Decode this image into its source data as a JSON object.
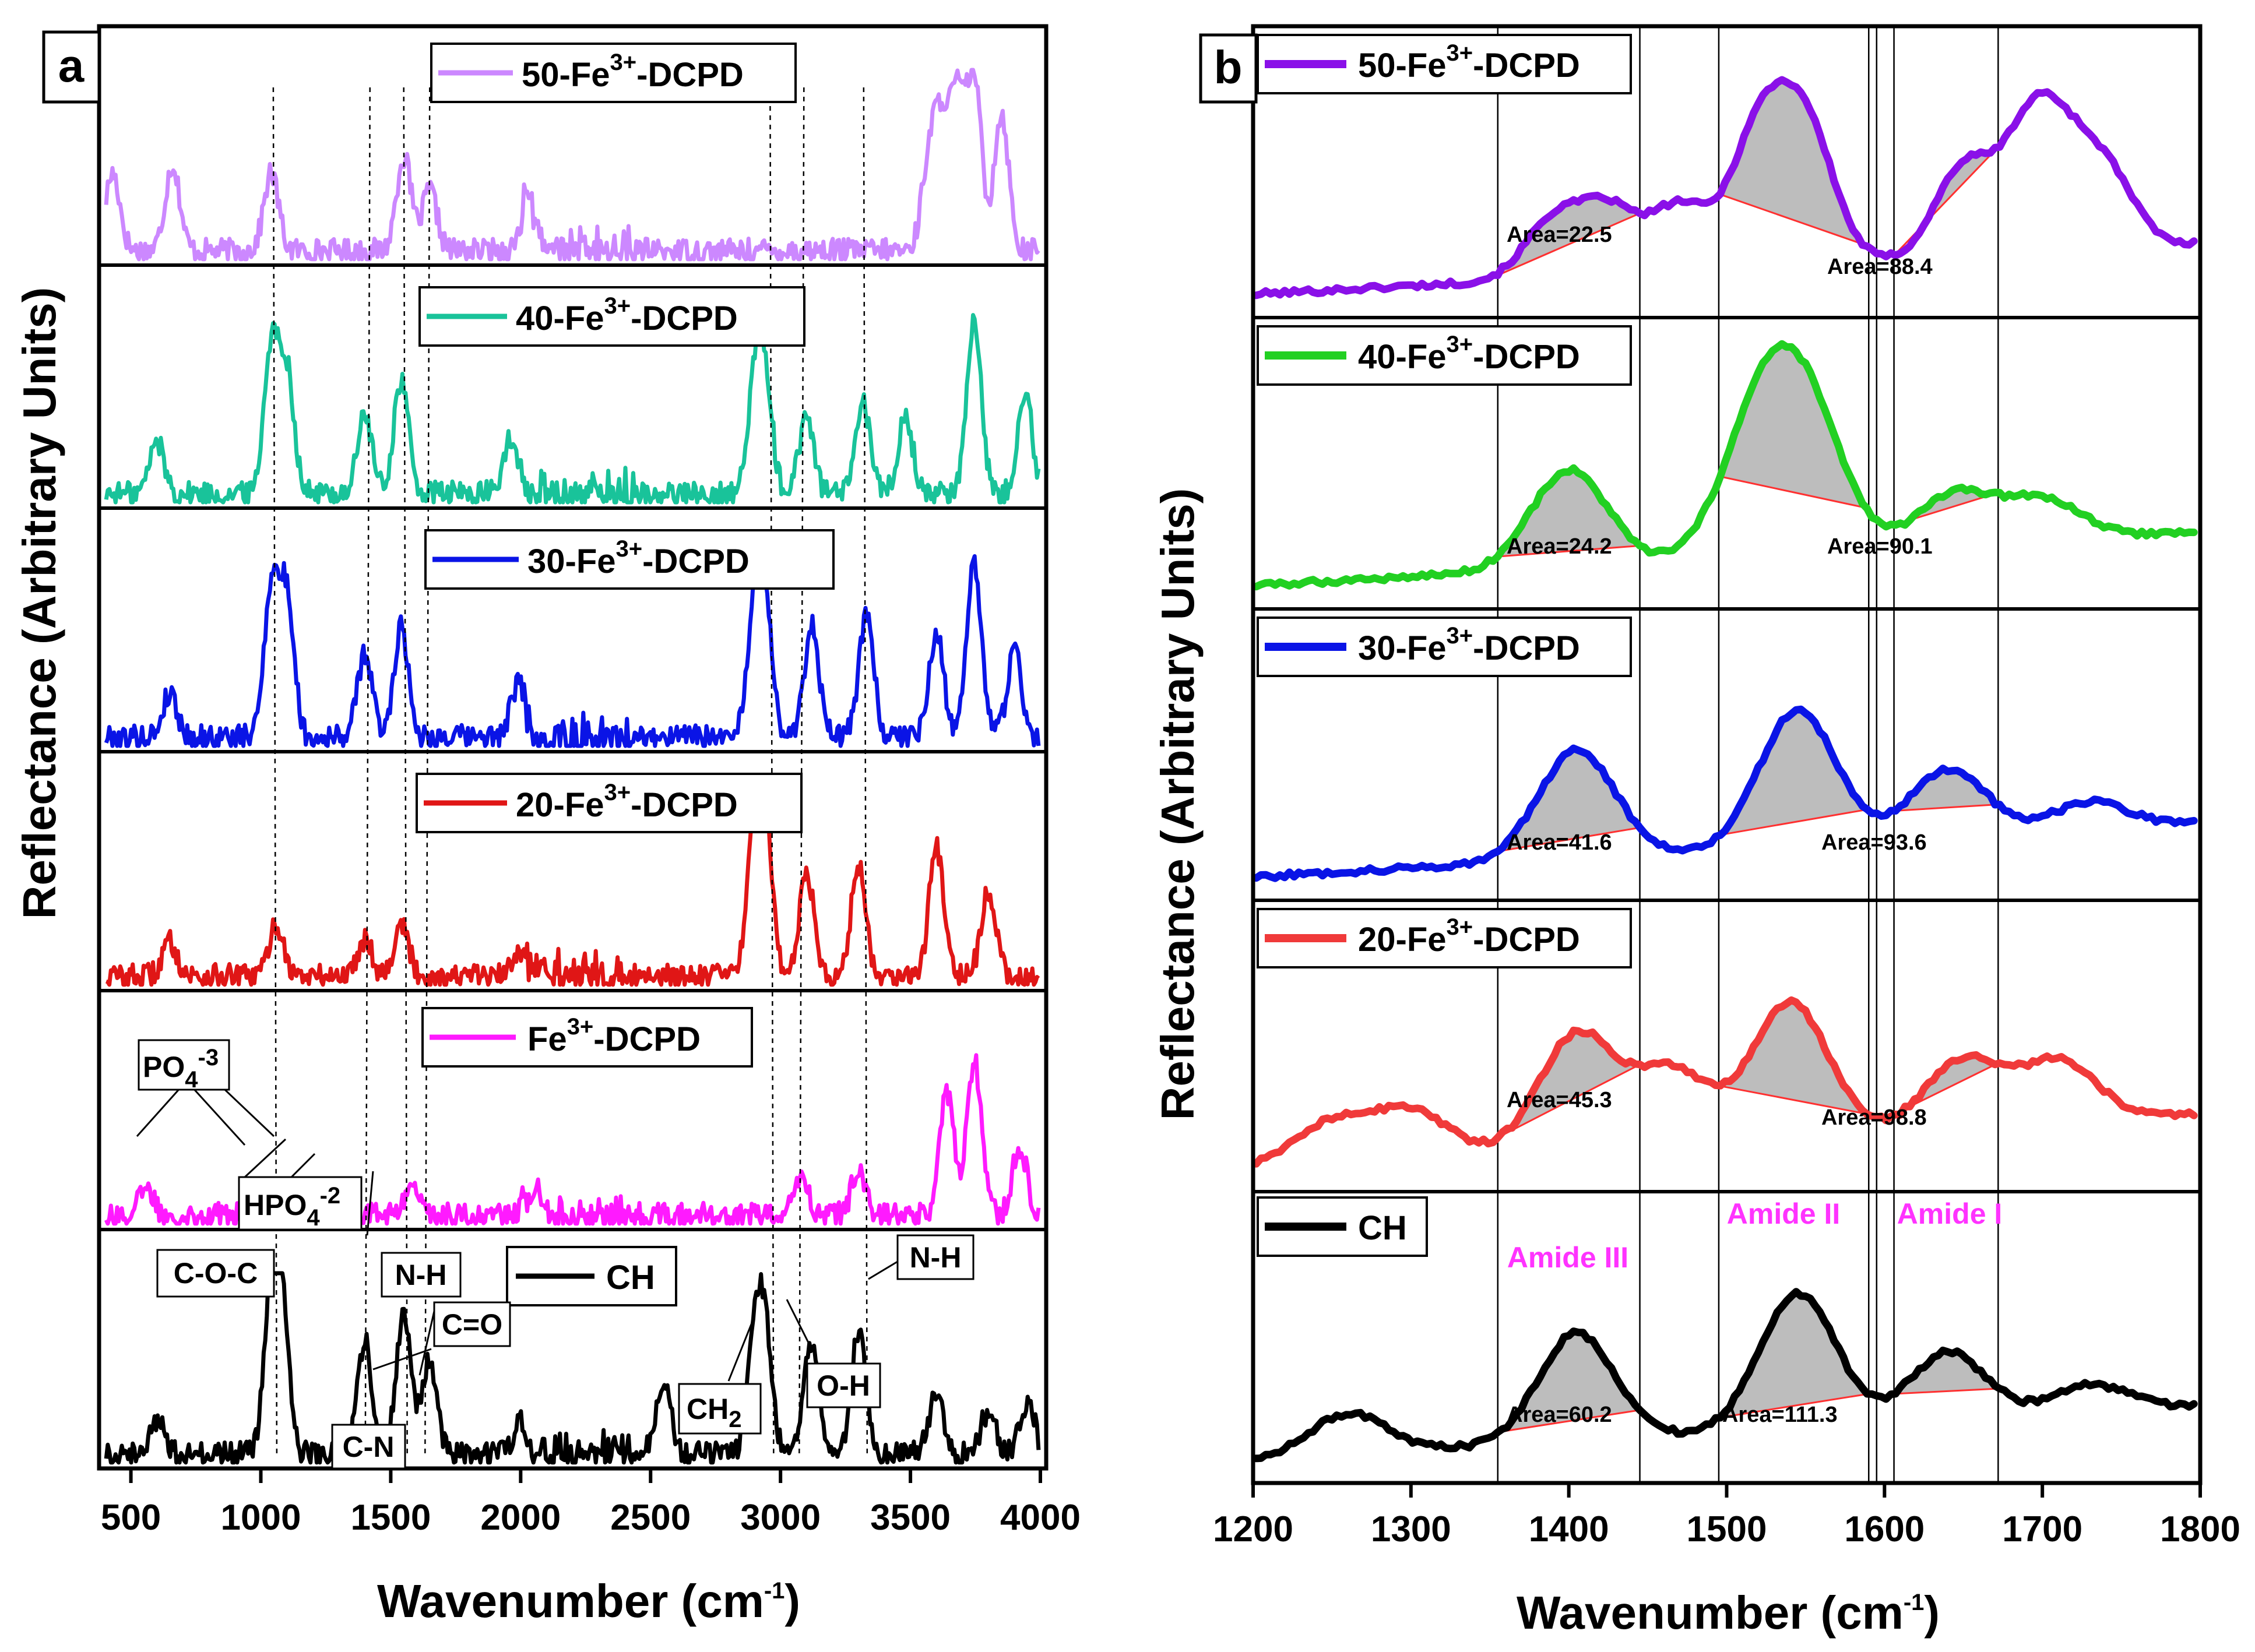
{
  "chart_data": [
    {
      "type": "line",
      "panel": "a",
      "xlabel": "Wavenumber (cm-1)",
      "ylabel": "Reflectance (Arbitrary Units)",
      "xlim": [
        400,
        4000
      ],
      "xticks": [
        500,
        1000,
        1500,
        2000,
        2500,
        3000,
        3500,
        4000
      ],
      "dashed_reference_lines": [
        1048,
        1420,
        1550,
        1650,
        2960,
        3090,
        3320
      ],
      "series": [
        {
          "name": "50-Fe3+-DCPD",
          "color": "#cc88ff",
          "peaks": [
            [
              430,
              0.45
            ],
            [
              660,
              0.5
            ],
            [
              1040,
              0.45
            ],
            [
              1550,
              0.55
            ],
            [
              1650,
              0.35
            ],
            [
              2030,
              0.3
            ],
            [
              3570,
              0.5
            ],
            [
              3620,
              0.7
            ],
            [
              3680,
              0.85
            ],
            [
              3745,
              1.0
            ],
            [
              3850,
              0.8
            ]
          ]
        },
        {
          "name": "40-Fe3+-DCPD",
          "color": "#19c39a",
          "peaks": [
            [
              600,
              0.3
            ],
            [
              1040,
              0.85
            ],
            [
              1100,
              0.7
            ],
            [
              1400,
              0.45
            ],
            [
              1540,
              0.65
            ],
            [
              1960,
              0.3
            ],
            [
              2900,
              0.55
            ],
            [
              2940,
              0.65
            ],
            [
              3100,
              0.45
            ],
            [
              3320,
              0.5
            ],
            [
              3480,
              0.45
            ],
            [
              3745,
              1.0
            ],
            [
              3940,
              0.6
            ]
          ]
        },
        {
          "name": "30-Fe3+-DCPD",
          "color": "#0a14e6",
          "peaks": [
            [
              650,
              0.25
            ],
            [
              1040,
              0.85
            ],
            [
              1100,
              0.8
            ],
            [
              1400,
              0.48
            ],
            [
              1540,
              0.63
            ],
            [
              1990,
              0.3
            ],
            [
              2900,
              0.65
            ],
            [
              2940,
              0.72
            ],
            [
              3120,
              0.65
            ],
            [
              3330,
              0.7
            ],
            [
              3600,
              0.6
            ],
            [
              3745,
              1.0
            ],
            [
              3900,
              0.5
            ]
          ]
        },
        {
          "name": "20-Fe3+-DCPD",
          "color": "#e01616",
          "peaks": [
            [
              650,
              0.2
            ],
            [
              1060,
              0.3
            ],
            [
              1400,
              0.22
            ],
            [
              1540,
              0.3
            ],
            [
              2000,
              0.18
            ],
            [
              2900,
              0.85
            ],
            [
              2940,
              0.85
            ],
            [
              3100,
              0.6
            ],
            [
              3300,
              0.65
            ],
            [
              3600,
              0.75
            ],
            [
              3800,
              0.5
            ]
          ]
        },
        {
          "name": "Fe3+-DCPD",
          "color": "#ff1aff",
          "peaks": [
            [
              560,
              0.15
            ],
            [
              1050,
              0.18
            ],
            [
              1150,
              0.16
            ],
            [
              1580,
              0.15
            ],
            [
              2050,
              0.15
            ],
            [
              3080,
              0.2
            ],
            [
              3300,
              0.25
            ],
            [
              3640,
              0.7
            ],
            [
              3745,
              0.9
            ],
            [
              3920,
              0.4
            ]
          ]
        },
        {
          "name": "CH",
          "color": "#000000",
          "peaks": [
            [
              600,
              0.2
            ],
            [
              1040,
              0.88
            ],
            [
              1080,
              0.85
            ],
            [
              1400,
              0.65
            ],
            [
              1550,
              0.85
            ],
            [
              1650,
              0.55
            ],
            [
              2000,
              0.2
            ],
            [
              2550,
              0.45
            ],
            [
              2900,
              0.6
            ],
            [
              2940,
              0.68
            ],
            [
              3120,
              0.65
            ],
            [
              3300,
              0.7
            ],
            [
              3600,
              0.35
            ],
            [
              3800,
              0.25
            ],
            [
              3950,
              0.3
            ]
          ]
        }
      ],
      "annotations": [
        "PO4-3",
        "HPO4-2",
        "C-O-C",
        "N-H",
        "C=O",
        "C-N",
        "CH2",
        "O-H",
        "N-H"
      ]
    },
    {
      "type": "line",
      "panel": "b",
      "xlabel": "Wavenumber (cm-1)",
      "ylabel": "Reflectance (Arbitrary Units)",
      "xlim": [
        1200,
        1800
      ],
      "xticks": [
        1200,
        1300,
        1400,
        1500,
        1600,
        1700,
        1800
      ],
      "vertical_lines": [
        1355,
        1445,
        1495,
        1590,
        1595,
        1606,
        1672
      ],
      "band_labels": [
        "Amide III",
        "Amide II",
        "Amide I"
      ],
      "series": [
        {
          "name": "50-Fe3+-DCPD",
          "color": "#8a10e8",
          "baseline": [
            0.0,
            0.28
          ],
          "peaks": [
            [
              1390,
              0.42
            ],
            [
              1425,
              0.48
            ],
            [
              1470,
              0.48
            ],
            [
              1520,
              0.95
            ],
            [
              1550,
              0.98
            ],
            [
              1650,
              0.65
            ],
            [
              1690,
              0.7
            ],
            [
              1710,
              0.6
            ],
            [
              1740,
              0.55
            ]
          ],
          "areas": [
            22.5,
            88.4
          ]
        },
        {
          "name": "40-Fe3+-DCPD",
          "color": "#22d022",
          "baseline": [
            0.0,
            0.3
          ],
          "peaks": [
            [
              1400,
              0.72
            ],
            [
              1520,
              0.9
            ],
            [
              1550,
              0.98
            ],
            [
              1645,
              0.38
            ],
            [
              1700,
              0.3
            ]
          ],
          "areas": [
            24.2,
            90.1
          ]
        },
        {
          "name": "30-Fe3+-DCPD",
          "color": "#0a14e6",
          "baseline": [
            0.0,
            0.3
          ],
          "peaks": [
            [
              1405,
              0.8
            ],
            [
              1545,
              1.0
            ],
            [
              1640,
              0.5
            ],
            [
              1730,
              0.2
            ]
          ],
          "areas": [
            41.6,
            93.6
          ]
        },
        {
          "name": "20-Fe3+-DCPD",
          "color": "#f03a3a",
          "baseline": [
            0.0,
            0.3
          ],
          "peaks": [
            [
              1250,
              0.3
            ],
            [
              1300,
              0.35
            ],
            [
              1405,
              0.85
            ],
            [
              1465,
              0.55
            ],
            [
              1540,
              1.0
            ],
            [
              1650,
              0.5
            ],
            [
              1710,
              0.45
            ]
          ],
          "areas": [
            45.3,
            98.8
          ]
        },
        {
          "name": "CH",
          "color": "#000000",
          "baseline": [
            0.0,
            0.3
          ],
          "peaks": [
            [
              1260,
              0.3
            ],
            [
              1405,
              0.8
            ],
            [
              1545,
              1.0
            ],
            [
              1640,
              0.5
            ],
            [
              1730,
              0.2
            ]
          ],
          "areas": [
            60.2,
            111.3
          ]
        }
      ]
    }
  ],
  "panel_a": {
    "letter": "a",
    "ylabel": "Reflectance (Arbitrary Units)",
    "xlabel_main": "Wavenumber (cm",
    "xlabel_sup": "-1",
    "xlabel_close": ")",
    "legends": [
      {
        "pre": "50-Fe",
        "sup": "3+",
        "post": "-DCPD"
      },
      {
        "pre": "40-Fe",
        "sup": "3+",
        "post": "-DCPD"
      },
      {
        "pre": "30-Fe",
        "sup": "3+",
        "post": "-DCPD"
      },
      {
        "pre": "20-Fe",
        "sup": "3+",
        "post": "-DCPD"
      },
      {
        "pre": "Fe",
        "sup": "3+",
        "post": "-DCPD"
      },
      {
        "pre": "CH",
        "sup": "",
        "post": ""
      }
    ],
    "labels": {
      "po4_main": "PO",
      "po4_sub": "4",
      "po4_sup": "-3",
      "hpo4_main": "HPO",
      "hpo4_sub": "4",
      "hpo4_sup": "-2",
      "coc": "C-O-C",
      "nh1": "N-H",
      "co": "C=O",
      "cn": "C-N",
      "ch2_main": "CH",
      "ch2_sub": "2",
      "oh": "O-H",
      "nh2": "N-H"
    }
  },
  "panel_b": {
    "letter": "b",
    "ylabel": "Reflectance (Arbitrary Units)",
    "xlabel_main": "Wavenumber (cm",
    "xlabel_sup": "-1",
    "xlabel_close": ")",
    "legends": [
      {
        "pre": "50-Fe",
        "sup": "3+",
        "post": "-DCPD"
      },
      {
        "pre": "40-Fe",
        "sup": "3+",
        "post": "-DCPD"
      },
      {
        "pre": "30-Fe",
        "sup": "3+",
        "post": "-DCPD"
      },
      {
        "pre": "20-Fe",
        "sup": "3+",
        "post": "-DCPD"
      },
      {
        "pre": "CH",
        "sup": "",
        "post": ""
      }
    ],
    "area_labels": [
      [
        "Area=22.5",
        "Area=88.4"
      ],
      [
        "Area=24.2",
        "Area=90.1"
      ],
      [
        "Area=41.6",
        "Area=93.6"
      ],
      [
        "Area=45.3",
        "Area=98.8"
      ],
      [
        "Area=60.2",
        "Area=111.3"
      ]
    ],
    "amide": {
      "iii": "Amide III",
      "ii": "Amide II",
      "i": "Amide I"
    }
  }
}
